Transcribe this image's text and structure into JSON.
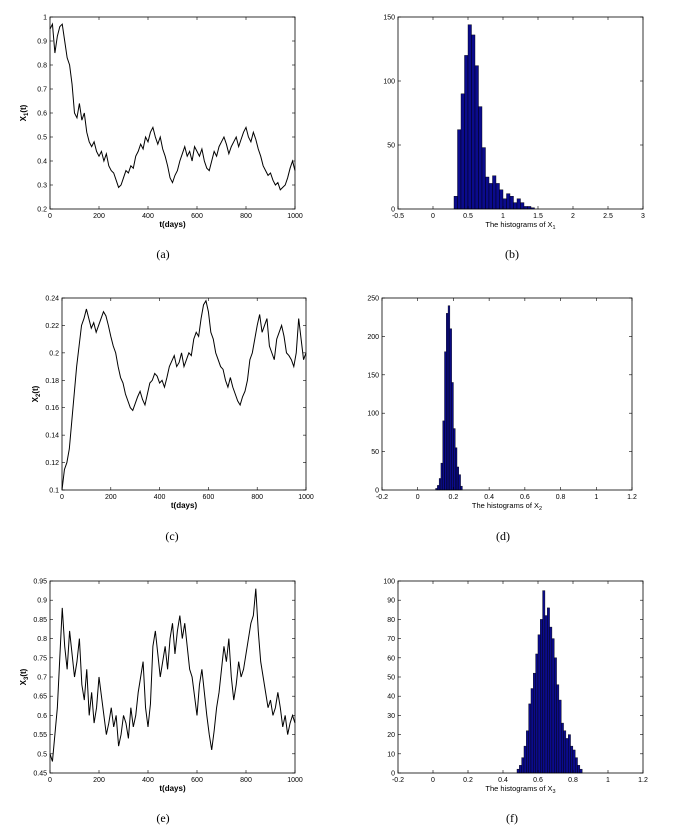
{
  "chart_data": [
    {
      "id": "a",
      "type": "line",
      "caption": "(a)",
      "xlabel": "t(days)",
      "ylabel_base": "X",
      "ylabel_sub": "1",
      "ylabel_tail": "(t)",
      "xlim": [
        0,
        1000
      ],
      "ylim": [
        0.2,
        1.0
      ],
      "xticks": [
        0,
        200,
        400,
        600,
        800,
        1000
      ],
      "yticks": [
        0.2,
        0.3,
        0.4,
        0.5,
        0.6,
        0.7,
        0.8,
        0.9,
        1
      ],
      "grid": false,
      "series": [
        {
          "x": [
            0,
            10,
            20,
            30,
            40,
            50,
            60,
            70,
            80,
            90,
            100,
            110,
            120,
            130,
            140,
            150,
            160,
            170,
            180,
            190,
            200,
            210,
            220,
            230,
            240,
            250,
            260,
            270,
            280,
            290,
            300,
            310,
            320,
            330,
            340,
            350,
            360,
            370,
            380,
            390,
            400,
            410,
            420,
            430,
            440,
            450,
            460,
            470,
            480,
            490,
            500,
            510,
            520,
            530,
            540,
            550,
            560,
            570,
            580,
            590,
            600,
            610,
            620,
            630,
            640,
            650,
            660,
            670,
            680,
            690,
            700,
            710,
            720,
            730,
            740,
            750,
            760,
            770,
            780,
            790,
            800,
            810,
            820,
            830,
            840,
            850,
            860,
            870,
            880,
            890,
            900,
            910,
            920,
            930,
            940,
            950,
            960,
            970,
            980,
            990,
            1000
          ],
          "values": [
            0.95,
            0.97,
            0.85,
            0.92,
            0.96,
            0.97,
            0.9,
            0.83,
            0.8,
            0.72,
            0.6,
            0.58,
            0.64,
            0.57,
            0.6,
            0.52,
            0.48,
            0.46,
            0.48,
            0.44,
            0.42,
            0.44,
            0.4,
            0.43,
            0.38,
            0.36,
            0.35,
            0.32,
            0.29,
            0.3,
            0.33,
            0.36,
            0.35,
            0.38,
            0.37,
            0.42,
            0.44,
            0.47,
            0.45,
            0.5,
            0.48,
            0.52,
            0.54,
            0.5,
            0.47,
            0.5,
            0.45,
            0.42,
            0.38,
            0.33,
            0.31,
            0.34,
            0.36,
            0.4,
            0.43,
            0.46,
            0.42,
            0.44,
            0.4,
            0.46,
            0.44,
            0.42,
            0.45,
            0.4,
            0.37,
            0.36,
            0.4,
            0.44,
            0.42,
            0.46,
            0.48,
            0.5,
            0.47,
            0.43,
            0.46,
            0.48,
            0.5,
            0.46,
            0.49,
            0.52,
            0.54,
            0.5,
            0.48,
            0.52,
            0.49,
            0.45,
            0.42,
            0.38,
            0.36,
            0.34,
            0.35,
            0.32,
            0.3,
            0.31,
            0.28,
            0.29,
            0.3,
            0.33,
            0.37,
            0.4,
            0.36
          ]
        }
      ]
    },
    {
      "id": "b",
      "type": "bar",
      "caption": "(b)",
      "xlabel_base": "The histograms of X",
      "xlabel_sub": "1",
      "xlim": [
        -0.5,
        3
      ],
      "ylim": [
        0,
        150
      ],
      "xticks": [
        -0.5,
        0,
        0.5,
        1,
        1.5,
        2,
        2.5,
        3
      ],
      "yticks": [
        0,
        50,
        100,
        150
      ],
      "grid": false,
      "bin_width": 0.05,
      "bin_start": 0.3,
      "values": [
        10,
        62,
        90,
        120,
        144,
        136,
        112,
        80,
        48,
        25,
        20,
        26,
        20,
        15,
        8,
        12,
        10,
        5,
        8,
        5,
        2,
        2,
        1
      ]
    },
    {
      "id": "c",
      "type": "line",
      "caption": "(c)",
      "xlabel": "t(days)",
      "ylabel_base": "X",
      "ylabel_sub": "2",
      "ylabel_tail": "(t)",
      "xlim": [
        0,
        1000
      ],
      "ylim": [
        0.1,
        0.24
      ],
      "xticks": [
        0,
        200,
        400,
        600,
        800,
        1000
      ],
      "yticks": [
        0.1,
        0.12,
        0.14,
        0.16,
        0.18,
        0.2,
        0.22,
        0.24
      ],
      "grid": false,
      "series": [
        {
          "x": [
            0,
            10,
            20,
            30,
            40,
            50,
            60,
            70,
            80,
            90,
            100,
            110,
            120,
            130,
            140,
            150,
            160,
            170,
            180,
            190,
            200,
            210,
            220,
            230,
            240,
            250,
            260,
            270,
            280,
            290,
            300,
            310,
            320,
            330,
            340,
            350,
            360,
            370,
            380,
            390,
            400,
            410,
            420,
            430,
            440,
            450,
            460,
            470,
            480,
            490,
            500,
            510,
            520,
            530,
            540,
            550,
            560,
            570,
            580,
            590,
            600,
            610,
            620,
            630,
            640,
            650,
            660,
            670,
            680,
            690,
            700,
            710,
            720,
            730,
            740,
            750,
            760,
            770,
            780,
            790,
            800,
            810,
            820,
            830,
            840,
            850,
            860,
            870,
            880,
            890,
            900,
            910,
            920,
            930,
            940,
            950,
            960,
            970,
            980,
            990,
            1000
          ],
          "values": [
            0.1,
            0.115,
            0.12,
            0.13,
            0.15,
            0.17,
            0.19,
            0.205,
            0.22,
            0.225,
            0.232,
            0.225,
            0.218,
            0.222,
            0.215,
            0.22,
            0.225,
            0.23,
            0.227,
            0.22,
            0.212,
            0.205,
            0.2,
            0.19,
            0.182,
            0.178,
            0.17,
            0.165,
            0.16,
            0.158,
            0.163,
            0.168,
            0.172,
            0.166,
            0.162,
            0.17,
            0.178,
            0.18,
            0.185,
            0.183,
            0.178,
            0.18,
            0.175,
            0.182,
            0.19,
            0.194,
            0.198,
            0.19,
            0.193,
            0.2,
            0.19,
            0.195,
            0.2,
            0.198,
            0.21,
            0.215,
            0.212,
            0.225,
            0.235,
            0.238,
            0.23,
            0.215,
            0.21,
            0.2,
            0.195,
            0.19,
            0.188,
            0.18,
            0.175,
            0.182,
            0.175,
            0.17,
            0.165,
            0.162,
            0.168,
            0.172,
            0.18,
            0.195,
            0.2,
            0.21,
            0.22,
            0.228,
            0.215,
            0.22,
            0.225,
            0.205,
            0.2,
            0.195,
            0.21,
            0.215,
            0.22,
            0.212,
            0.2,
            0.198,
            0.195,
            0.19,
            0.2,
            0.225,
            0.21,
            0.195,
            0.2
          ]
        }
      ]
    },
    {
      "id": "d",
      "type": "bar",
      "caption": "(d)",
      "xlabel_base": "The histograms of X",
      "xlabel_sub": "2",
      "xlim": [
        -0.2,
        1.2
      ],
      "ylim": [
        0,
        250
      ],
      "xticks": [
        -0.2,
        0,
        0.2,
        0.4,
        0.6,
        0.8,
        1,
        1.2
      ],
      "yticks": [
        0,
        50,
        100,
        150,
        200,
        250
      ],
      "grid": false,
      "bin_width": 0.01,
      "bin_start": 0.1,
      "values": [
        2,
        6,
        15,
        35,
        90,
        180,
        230,
        240,
        210,
        140,
        80,
        55,
        30,
        20,
        5
      ]
    },
    {
      "id": "e",
      "type": "line",
      "caption": "(e)",
      "xlabel": "t(days)",
      "ylabel_base": "X",
      "ylabel_sub": "3",
      "ylabel_tail": "(t)",
      "xlim": [
        0,
        1000
      ],
      "ylim": [
        0.45,
        0.95
      ],
      "xticks": [
        0,
        200,
        400,
        600,
        800,
        1000
      ],
      "yticks": [
        0.45,
        0.5,
        0.55,
        0.6,
        0.65,
        0.7,
        0.75,
        0.8,
        0.85,
        0.9,
        0.95
      ],
      "grid": false,
      "series": [
        {
          "x": [
            0,
            10,
            20,
            30,
            40,
            50,
            60,
            70,
            80,
            90,
            100,
            110,
            120,
            130,
            140,
            150,
            160,
            170,
            180,
            190,
            200,
            210,
            220,
            230,
            240,
            250,
            260,
            270,
            280,
            290,
            300,
            310,
            320,
            330,
            340,
            350,
            360,
            370,
            380,
            390,
            400,
            410,
            420,
            430,
            440,
            450,
            460,
            470,
            480,
            490,
            500,
            510,
            520,
            530,
            540,
            550,
            560,
            570,
            580,
            590,
            600,
            610,
            620,
            630,
            640,
            650,
            660,
            670,
            680,
            690,
            700,
            710,
            720,
            730,
            740,
            750,
            760,
            770,
            780,
            790,
            800,
            810,
            820,
            830,
            840,
            850,
            860,
            870,
            880,
            890,
            900,
            910,
            920,
            930,
            940,
            950,
            960,
            970,
            980,
            990,
            1000
          ],
          "values": [
            0.5,
            0.48,
            0.55,
            0.62,
            0.75,
            0.88,
            0.78,
            0.72,
            0.82,
            0.76,
            0.7,
            0.74,
            0.8,
            0.68,
            0.64,
            0.72,
            0.6,
            0.66,
            0.58,
            0.62,
            0.7,
            0.65,
            0.6,
            0.55,
            0.58,
            0.62,
            0.57,
            0.6,
            0.52,
            0.55,
            0.6,
            0.58,
            0.54,
            0.62,
            0.57,
            0.6,
            0.66,
            0.7,
            0.74,
            0.62,
            0.57,
            0.63,
            0.78,
            0.82,
            0.76,
            0.7,
            0.74,
            0.78,
            0.72,
            0.8,
            0.84,
            0.76,
            0.82,
            0.86,
            0.8,
            0.84,
            0.78,
            0.72,
            0.7,
            0.65,
            0.6,
            0.68,
            0.72,
            0.66,
            0.6,
            0.55,
            0.51,
            0.56,
            0.62,
            0.66,
            0.72,
            0.78,
            0.74,
            0.8,
            0.7,
            0.64,
            0.68,
            0.74,
            0.7,
            0.72,
            0.76,
            0.8,
            0.84,
            0.86,
            0.93,
            0.82,
            0.74,
            0.7,
            0.66,
            0.62,
            0.64,
            0.6,
            0.62,
            0.66,
            0.62,
            0.57,
            0.6,
            0.55,
            0.58,
            0.6,
            0.58
          ]
        }
      ]
    },
    {
      "id": "f",
      "type": "bar",
      "caption": "(f)",
      "xlabel_base": "The histograms of X",
      "xlabel_sub": "3",
      "xlim": [
        -0.2,
        1.2
      ],
      "ylim": [
        0,
        100
      ],
      "xticks": [
        -0.2,
        0,
        0.2,
        0.4,
        0.6,
        0.8,
        1,
        1.2
      ],
      "yticks": [
        0,
        10,
        20,
        30,
        40,
        50,
        60,
        70,
        80,
        90,
        100
      ],
      "grid": false,
      "bin_width": 0.0133,
      "bin_start": 0.48,
      "values": [
        2,
        4,
        8,
        14,
        22,
        36,
        44,
        52,
        62,
        72,
        80,
        95,
        82,
        86,
        76,
        70,
        60,
        46,
        38,
        26,
        22,
        18,
        20,
        14,
        12,
        8,
        4,
        2
      ]
    }
  ]
}
